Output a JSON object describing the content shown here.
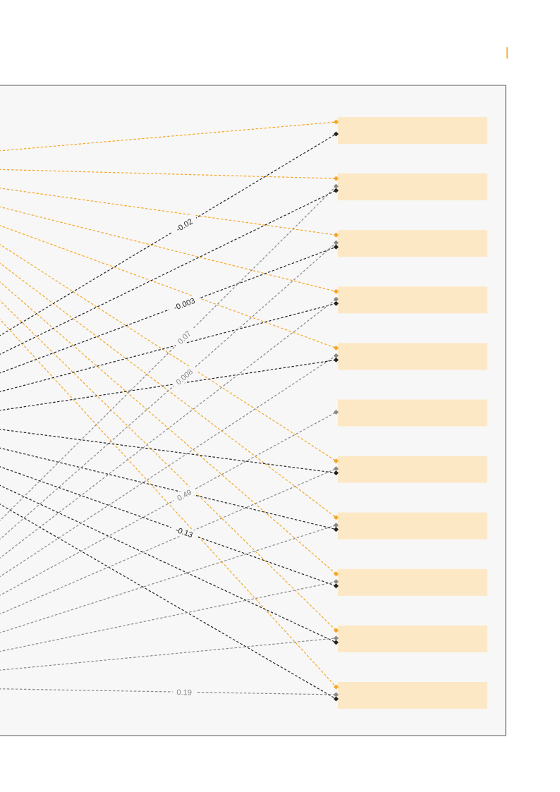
{
  "colors": {
    "panel_bg": "#f7f7f7",
    "panel_border": "#555555",
    "box_fill": "#fde8c6",
    "accent": "#f5a623",
    "black": "#222222",
    "gray": "#888888",
    "white": "#ffffff"
  },
  "boxes_count": 11,
  "edges": [
    {
      "from_row": 0,
      "to": 0,
      "color": "accent"
    },
    {
      "from_row": 1,
      "to": 1,
      "color": "accent"
    },
    {
      "from_row": 2,
      "to": 2,
      "color": "accent"
    },
    {
      "from_row": 3,
      "to": 3,
      "color": "accent"
    },
    {
      "from_row": 4,
      "to": 4,
      "color": "accent"
    },
    {
      "from_row": 5,
      "to": 6,
      "color": "accent"
    },
    {
      "from_row": 6,
      "to": 7,
      "color": "accent"
    },
    {
      "from_row": 7,
      "to": 8,
      "color": "accent"
    },
    {
      "from_row": 8,
      "to": 9,
      "color": "accent"
    },
    {
      "from_row": 9,
      "to": 10,
      "color": "accent"
    },
    {
      "from_row": 10,
      "to": 0,
      "color": "black",
      "label": "-0.02"
    },
    {
      "from_row": 11,
      "to": 1,
      "color": "black"
    },
    {
      "from_row": 12,
      "to": 2,
      "color": "black",
      "label": "-0.003"
    },
    {
      "from_row": 13,
      "to": 3,
      "color": "black"
    },
    {
      "from_row": 14,
      "to": 4,
      "color": "black"
    },
    {
      "from_row": 15,
      "to": 6,
      "color": "black"
    },
    {
      "from_row": 16,
      "to": 7,
      "color": "black"
    },
    {
      "from_row": 17,
      "to": 8,
      "color": "black",
      "label": "-0.13"
    },
    {
      "from_row": 18,
      "to": 9,
      "color": "black"
    },
    {
      "from_row": 19,
      "to": 10,
      "color": "black"
    },
    {
      "from_row": 20,
      "to": 1,
      "color": "gray",
      "label": "0.07"
    },
    {
      "from_row": 21,
      "to": 2,
      "color": "gray",
      "label": "0.008"
    },
    {
      "from_row": 22,
      "to": 3,
      "color": "gray"
    },
    {
      "from_row": 23,
      "to": 4,
      "color": "gray"
    },
    {
      "from_row": 24,
      "to": 5,
      "color": "gray",
      "label": "0.49"
    },
    {
      "from_row": 25,
      "to": 6,
      "color": "gray"
    },
    {
      "from_row": 26,
      "to": 7,
      "color": "gray"
    },
    {
      "from_row": 27,
      "to": 8,
      "color": "gray"
    },
    {
      "from_row": 28,
      "to": 9,
      "color": "gray"
    },
    {
      "from_row": 29,
      "to": 10,
      "color": "gray",
      "label": "0.19"
    }
  ]
}
